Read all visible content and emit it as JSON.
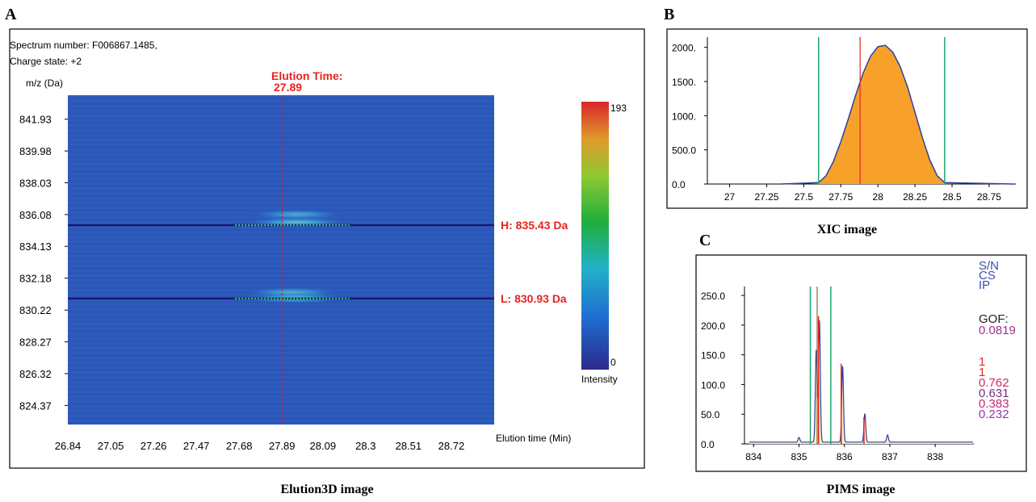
{
  "panels": {
    "a": {
      "letter": "A",
      "caption": "Elution3D image"
    },
    "b": {
      "letter": "B",
      "caption": "XIC image"
    },
    "c": {
      "letter": "C",
      "caption": "PIMS image"
    }
  },
  "colors": {
    "heatmap_bg": "#2a56b8",
    "light_line": "#1a1a6e",
    "elution_line": "#c0203a",
    "label_red": "#e8231f",
    "xic_fill": "#f7a12a",
    "xic_curve": "#2f3f9e",
    "green_bounds": "#1aa86a",
    "pims_peak": "#e8231f",
    "pims_curve": "#2f3f9e",
    "pims_fill": "#f8efc2"
  },
  "chart_data": [
    {
      "id": "elution3d",
      "type": "heatmap",
      "header": [
        "Spectrum number: F006867.1485,",
        "Charge state: +2"
      ],
      "ylabel": "m/z (Da)",
      "xlabel": "Elution time (Min)",
      "y_ticks": [
        "841.93",
        "839.98",
        "838.03",
        "836.08",
        "834.13",
        "832.18",
        "830.22",
        "828.27",
        "826.32",
        "824.37"
      ],
      "x_ticks": [
        "26.84",
        "27.05",
        "27.26",
        "27.47",
        "27.68",
        "27.89",
        "28.09",
        "28.3",
        "28.51",
        "28.72"
      ],
      "elution_time_label": "Elution Time:",
      "elution_time_value": "27.89",
      "elution_time": 27.89,
      "heavy_label": "H: 835.43 Da",
      "light_label": "L: 830.93 Da",
      "heavy_mz": 835.43,
      "light_mz": 830.93,
      "xlim": [
        26.84,
        28.93
      ],
      "ylim": [
        823.2,
        843.4
      ],
      "colorbar": {
        "max": "193",
        "min": "0",
        "label": "Intensity"
      },
      "spots": [
        {
          "mz": 836.08,
          "t_start": 27.72,
          "t_end": 28.2,
          "intensity": 0.55
        },
        {
          "mz": 835.6,
          "t_start": 27.7,
          "t_end": 28.22,
          "intensity": 0.7
        },
        {
          "mz": 831.3,
          "t_start": 27.7,
          "t_end": 28.18,
          "intensity": 0.6
        },
        {
          "mz": 830.95,
          "t_start": 27.68,
          "t_end": 28.22,
          "intensity": 0.7
        }
      ]
    },
    {
      "id": "xic",
      "type": "area",
      "x_ticks": [
        "27",
        "27.25",
        "27.5",
        "27.75",
        "28",
        "28.25",
        "28.5",
        "28.75"
      ],
      "y_ticks": [
        "0.0",
        "500.0",
        "1000.",
        "1500.",
        "2000."
      ],
      "xlim": [
        26.85,
        28.93
      ],
      "ylim": [
        0,
        2150
      ],
      "x": [
        27.6,
        27.65,
        27.7,
        27.75,
        27.8,
        27.85,
        27.9,
        27.95,
        28.0,
        28.05,
        28.1,
        28.15,
        28.2,
        28.25,
        28.3,
        28.35,
        28.4,
        28.45
      ],
      "y": [
        20,
        120,
        330,
        620,
        950,
        1300,
        1620,
        1870,
        2010,
        2030,
        1930,
        1720,
        1420,
        1050,
        680,
        350,
        120,
        20
      ],
      "green_bounds": [
        27.6,
        28.45
      ],
      "red_marker": 27.88
    },
    {
      "id": "pims",
      "type": "line",
      "x_ticks": [
        "834",
        "835",
        "836",
        "837",
        "838"
      ],
      "y_ticks": [
        "0.0",
        "50.0",
        "100.0",
        "150.0",
        "200.0",
        "250.0"
      ],
      "xlim": [
        833.8,
        838.85
      ],
      "ylim": [
        0,
        265
      ],
      "peaks_x": [
        835.43,
        835.93,
        836.43
      ],
      "peaks_y": [
        215,
        135,
        45
      ],
      "observed_peaks": [
        {
          "x": 835.0,
          "y": 8
        },
        {
          "x": 835.38,
          "y": 155
        },
        {
          "x": 835.45,
          "y": 205
        },
        {
          "x": 835.96,
          "y": 128
        },
        {
          "x": 836.45,
          "y": 48
        },
        {
          "x": 836.95,
          "y": 12
        }
      ],
      "green_bounds": [
        835.25,
        835.7
      ],
      "brown_marker": 835.4,
      "stats_labels": [
        "S/N",
        "CS",
        "IP"
      ],
      "gof_label": "GOF:",
      "gof_value": "0.0819",
      "values": [
        "1",
        "1",
        "0.762",
        "0.631",
        "0.383",
        "0.232"
      ]
    }
  ]
}
